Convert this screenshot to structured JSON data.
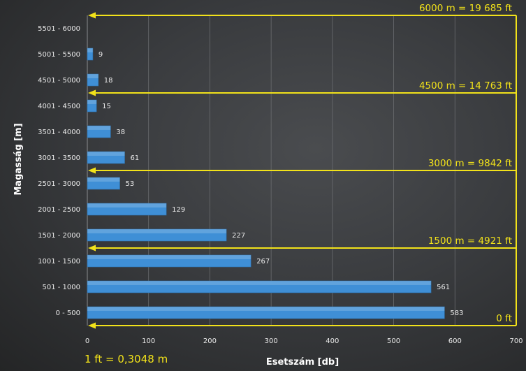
{
  "chart_data": {
    "type": "bar",
    "orientation": "horizontal",
    "categories": [
      "0 - 500",
      "501 - 1000",
      "1001 - 1500",
      "1501 - 2000",
      "2001 - 2500",
      "2501 - 3000",
      "3001 - 3500",
      "3501 - 4000",
      "4001 - 4500",
      "4501 - 5000",
      "5001 - 5500",
      "5501 - 6000"
    ],
    "values": [
      583,
      561,
      267,
      227,
      129,
      53,
      61,
      38,
      15,
      18,
      9,
      null
    ],
    "data_labels": [
      "583",
      "561",
      "267",
      "227",
      "129",
      "53",
      "61",
      "38",
      "15",
      "18",
      "9",
      ""
    ],
    "xlabel": "Esetszám [db]",
    "ylabel": "Magasság [m]",
    "xlim": [
      0,
      700
    ],
    "xticks": [
      "0",
      "100",
      "200",
      "300",
      "400",
      "500",
      "600",
      "700"
    ],
    "grid": "vertical",
    "bar_color": "#3f8fd6",
    "annotation_color": "#f2e21a",
    "annotations": [
      {
        "text": "6000 m = 19 685 ft",
        "altitude_m": 6000
      },
      {
        "text": "4500 m = 14 763 ft",
        "altitude_m": 4500
      },
      {
        "text": "3000 m = 9842 ft",
        "altitude_m": 3000
      },
      {
        "text": "1500 m = 4921 ft",
        "altitude_m": 1500
      },
      {
        "text": "0 ft",
        "altitude_m": 0
      }
    ],
    "footnote": "1 ft = 0,3048 m"
  }
}
